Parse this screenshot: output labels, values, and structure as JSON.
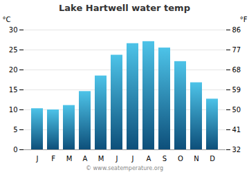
{
  "chart_data": {
    "type": "bar",
    "title": "Lake Hartwell water temp",
    "categories": [
      "J",
      "F",
      "M",
      "A",
      "M",
      "J",
      "J",
      "A",
      "S",
      "O",
      "N",
      "D"
    ],
    "values": [
      10.3,
      10.0,
      11.1,
      14.6,
      18.5,
      23.7,
      26.6,
      27.1,
      25.5,
      22.1,
      16.8,
      12.7
    ],
    "color": [
      "#0d4f7a",
      "#4dc3e8"
    ],
    "ylabel": "°C",
    "y2label": "°F",
    "ylim": [
      0,
      30
    ],
    "yticks": [
      0,
      5,
      10,
      15,
      20,
      25,
      30
    ],
    "y2lim": [
      32,
      86
    ],
    "y2ticks": [
      32,
      41,
      50,
      59,
      68,
      77,
      86
    ],
    "grid": true,
    "caption": "© www.seatemperature.org"
  }
}
